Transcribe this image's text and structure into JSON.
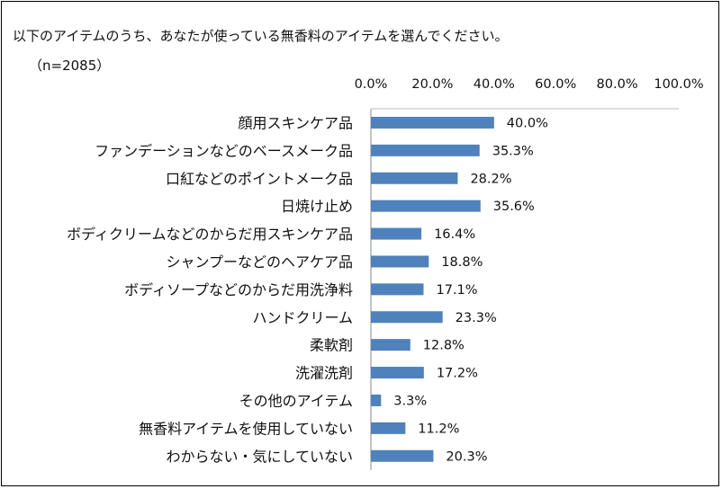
{
  "chart_data": {
    "type": "bar",
    "orientation": "horizontal",
    "title": "以下のアイテムのうち、あなたが使っている無香料のアイテムを選んでください。",
    "subtitle": "（n=2085）",
    "xlim": [
      0,
      100
    ],
    "tick_labels": [
      "0.0%",
      "20.0%",
      "40.0%",
      "60.0%",
      "80.0%",
      "100.0%"
    ],
    "tick_values": [
      0,
      20,
      40,
      60,
      80,
      100
    ],
    "axis_position": "top",
    "grid": false,
    "bar_color": "#4F81BD",
    "categories": [
      "顔用スキンケア品",
      "ファンデーションなどのベースメーク品",
      "口紅などのポイントメーク品",
      "日焼け止め",
      "ボディクリームなどのからだ用スキンケア品",
      "シャンプーなどのヘアケア品",
      "ボディソープなどのからだ用洗浄料",
      "ハンドクリーム",
      "柔軟剤",
      "洗濯洗剤",
      "その他のアイテム",
      "無香料アイテムを使用していない",
      "わからない・気にしていない"
    ],
    "values": [
      40.0,
      35.3,
      28.2,
      35.6,
      16.4,
      18.8,
      17.1,
      23.3,
      12.8,
      17.2,
      3.3,
      11.2,
      20.3
    ],
    "value_labels": [
      "40.0%",
      "35.3%",
      "28.2%",
      "35.6%",
      "16.4%",
      "18.8%",
      "17.1%",
      "23.3%",
      "12.8%",
      "17.2%",
      "3.3%",
      "11.2%",
      "20.3%"
    ]
  }
}
